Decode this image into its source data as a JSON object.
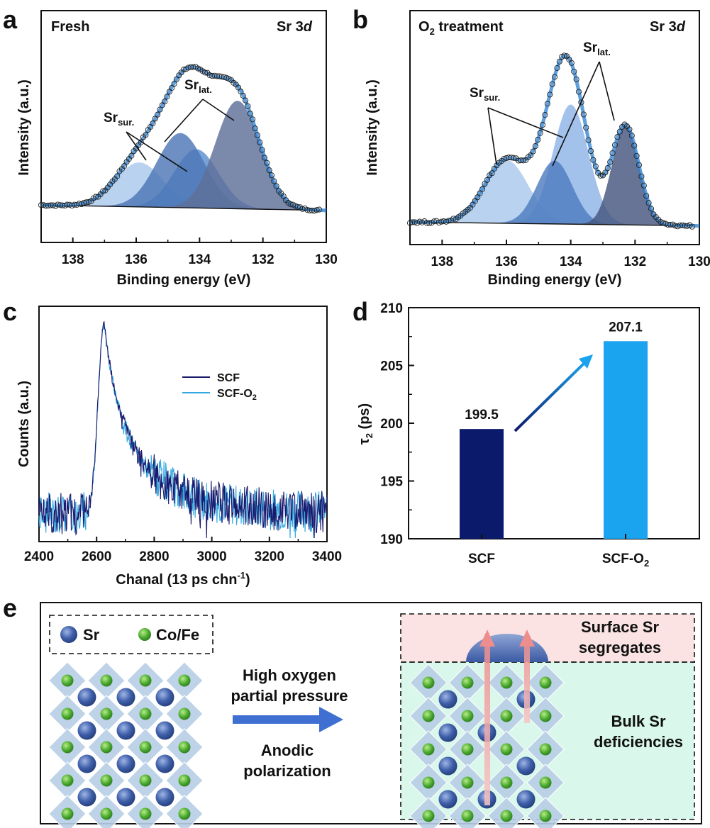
{
  "panel_letters": {
    "a": "a",
    "b": "b",
    "c": "c",
    "d": "d",
    "e": "e"
  },
  "chart_data": [
    {
      "panel": "a",
      "type": "area",
      "title_left": "Fresh",
      "title_right": "Sr 3",
      "title_right_italic": "d",
      "xlabel": "Binding energy (eV)",
      "ylabel": "Intensity (a.u.)",
      "xlim": [
        139,
        130
      ],
      "x_reversed": true,
      "xticks": [
        138,
        136,
        134,
        132,
        130
      ],
      "y_ticks_shown": false,
      "baseline": {
        "at_139": 0.03,
        "at_131": 0.0
      },
      "components": [
        {
          "label": "Sr_sur.",
          "center": 135.9,
          "height": 0.28,
          "width": 0.75,
          "color": "#a9c8ec"
        },
        {
          "label": "Sr_sur.",
          "center": 134.1,
          "height": 0.37,
          "width": 0.7,
          "color": "#5b8fd0"
        },
        {
          "label": "Sr_lat.",
          "center": 134.6,
          "height": 0.47,
          "width": 0.75,
          "color": "#4d76b6"
        },
        {
          "label": "Sr_lat.",
          "center": 132.8,
          "height": 0.68,
          "width": 0.7,
          "color": "#5e6f99"
        }
      ],
      "annotations": [
        {
          "text": "Sr",
          "sub": "sur.",
          "points_to": [
            135.9,
            134.1
          ]
        },
        {
          "text": "Sr",
          "sub": "lat.",
          "points_to": [
            134.6,
            132.8
          ]
        }
      ],
      "series": [
        {
          "name": "experimental",
          "style": "open circles"
        },
        {
          "name": "fit envelope",
          "style": "blue line"
        }
      ]
    },
    {
      "panel": "b",
      "type": "area",
      "title_left": "O",
      "title_left_sub": "2",
      "title_left_rest": " treatment",
      "title_right": "Sr 3",
      "title_right_italic": "d",
      "xlabel": "Binding energy (eV)",
      "ylabel": "Intensity (a.u.)",
      "xlim": [
        139,
        130
      ],
      "x_reversed": true,
      "xticks": [
        138,
        136,
        134,
        132,
        130
      ],
      "y_ticks_shown": false,
      "baseline": {
        "at_139": 0.02,
        "at_131": 0.0
      },
      "components": [
        {
          "label": "Sr_sur.",
          "center": 136.0,
          "height": 0.37,
          "width": 0.68,
          "color": "#a9c8ec"
        },
        {
          "label": "Sr_sur.",
          "center": 134.0,
          "height": 0.7,
          "width": 0.55,
          "color": "#8db3e6"
        },
        {
          "label": "Sr_lat.",
          "center": 134.5,
          "height": 0.37,
          "width": 0.55,
          "color": "#4f7cc0"
        },
        {
          "label": "Sr_lat.",
          "center": 132.3,
          "height": 0.58,
          "width": 0.42,
          "color": "#46557e"
        }
      ],
      "annotations": [
        {
          "text": "Sr",
          "sub": "sur.",
          "points_to": [
            136.0,
            134.0
          ]
        },
        {
          "text": "Sr",
          "sub": "lat.",
          "points_to": [
            134.5,
            132.3
          ]
        }
      ],
      "series": [
        {
          "name": "experimental",
          "style": "open circles"
        },
        {
          "name": "fit envelope",
          "style": "blue line"
        }
      ]
    },
    {
      "panel": "c",
      "type": "line",
      "xlabel": "Chanal (13 ps chn",
      "xlabel_sup": "-1",
      "xlabel_end": ")",
      "ylabel": "Counts (a.u.)",
      "xlim": [
        2400,
        3400
      ],
      "xticks": [
        2400,
        2600,
        2800,
        3000,
        3200,
        3400
      ],
      "y_ticks_shown": false,
      "peak_x": 2625,
      "series": [
        {
          "name": "SCF",
          "color": "#1a1a6e"
        },
        {
          "name": "SCF-O",
          "name_sub": "2",
          "color": "#33a8e0"
        }
      ],
      "legend_position": "right"
    },
    {
      "panel": "d",
      "type": "bar",
      "ylabel": "τ",
      "ylabel_sub": "2",
      "ylabel_rest": " (ps)",
      "ylim": [
        190,
        210
      ],
      "yticks": [
        190,
        195,
        200,
        205,
        210
      ],
      "categories": [
        "SCF",
        "SCF-O"
      ],
      "category_subs": [
        "",
        "2"
      ],
      "values": [
        199.5,
        207.1
      ],
      "value_labels": [
        "199.5",
        "207.1"
      ],
      "colors": [
        "#0c1a6b",
        "#1aa3ee"
      ],
      "arrow": "gradient arrow from SCF bar to SCF-O2 bar"
    }
  ],
  "schematic": {
    "legend_sr": "Sr",
    "legend_cofe": "Co/Fe",
    "process_line1": "High oxygen",
    "process_line2": "partial pressure",
    "process_line3": "Anodic",
    "process_line4": "polarization",
    "surface_label_1": "Surface Sr",
    "surface_label_2": "segregates",
    "bulk_label_1": "Bulk Sr",
    "bulk_label_2": "deficiencies",
    "colors": {
      "sr": "#3a5aa8",
      "cofe": "#4cae3c",
      "octahedra": "#b7cde6",
      "surface_bg": "#fbe3e3",
      "bulk_bg": "#d9f7ea",
      "arrow": "#3f6fd1",
      "up_arrow": "#f3a0a0"
    }
  }
}
